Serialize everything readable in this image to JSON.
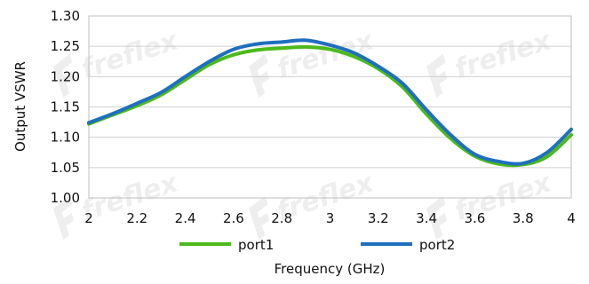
{
  "chart_data": {
    "type": "line",
    "title": "",
    "xlabel": "Frequency (GHz)",
    "ylabel": "Output VSWR",
    "xlim": [
      2,
      4
    ],
    "ylim": [
      1.0,
      1.3
    ],
    "x_ticks": [
      "2",
      "2.2",
      "2.4",
      "2.6",
      "2.8",
      "3",
      "3.2",
      "3.4",
      "3.6",
      "3.8",
      "4"
    ],
    "y_ticks": [
      "1.00",
      "1.05",
      "1.10",
      "1.15",
      "1.20",
      "1.25",
      "1.30"
    ],
    "grid": "horizontal",
    "legend_position": "bottom",
    "x": [
      2.0,
      2.1,
      2.2,
      2.3,
      2.4,
      2.5,
      2.6,
      2.7,
      2.8,
      2.9,
      3.0,
      3.1,
      3.2,
      3.3,
      3.4,
      3.5,
      3.6,
      3.7,
      3.8,
      3.9,
      4.0
    ],
    "series": [
      {
        "name": "port1",
        "color": "#4cba1a",
        "values": [
          1.122,
          1.137,
          1.152,
          1.17,
          1.195,
          1.22,
          1.236,
          1.244,
          1.247,
          1.249,
          1.245,
          1.233,
          1.213,
          1.183,
          1.138,
          1.098,
          1.069,
          1.056,
          1.055,
          1.068,
          1.104
        ]
      },
      {
        "name": "port2",
        "color": "#1f6fbf",
        "values": [
          1.124,
          1.139,
          1.156,
          1.174,
          1.2,
          1.225,
          1.245,
          1.254,
          1.257,
          1.26,
          1.252,
          1.239,
          1.217,
          1.189,
          1.145,
          1.104,
          1.072,
          1.06,
          1.057,
          1.075,
          1.113
        ]
      }
    ]
  },
  "watermark": {
    "text": "freflex",
    "color": "#eeeeee"
  }
}
